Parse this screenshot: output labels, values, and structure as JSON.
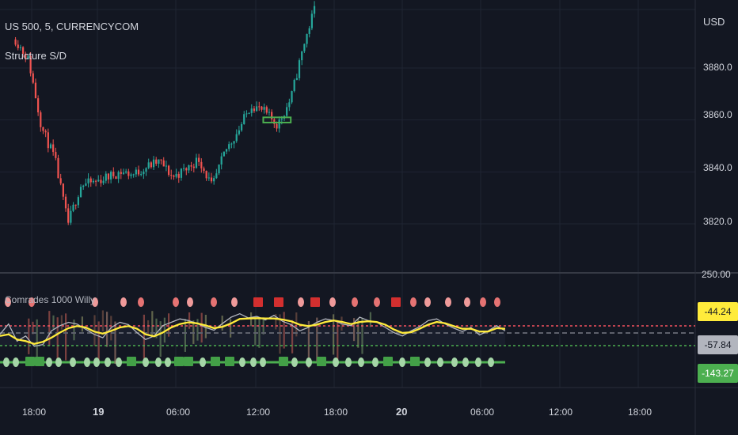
{
  "chart_header": {
    "symbol": "US 500, 5, CURRENCYCOM",
    "indicator": "Structure S/D"
  },
  "price_axis": {
    "currency": "USD",
    "ticks": [
      "3880.0",
      "3860.0",
      "3840.0",
      "3820.0"
    ]
  },
  "oscillator": {
    "title": "Comrades 1000 Willy",
    "top_tick": "250.00",
    "values": {
      "upper": "-44.24",
      "middle": "-57.84",
      "lower": "-143.27"
    }
  },
  "time_axis": {
    "labels": [
      "18:00",
      "19",
      "06:00",
      "12:00",
      "18:00",
      "20",
      "06:00",
      "12:00",
      "18:00"
    ]
  },
  "colors": {
    "background": "#131722",
    "grid": "#1f2433",
    "candle_up": "#26a69a",
    "candle_down": "#ef5350",
    "willy_fast": "#b2b5be",
    "willy_slow": "#ffeb3b",
    "upper_level": "#f7525f",
    "lower_level": "#4caf50",
    "demand_zone": "#4caf50"
  },
  "chart_data": {
    "type": "line",
    "title": "US 500, 5, CURRENCYCOM",
    "ylabel": "USD",
    "ylim": [
      3812,
      3905
    ],
    "x": [
      "18 17:00",
      "18 18:00",
      "18 19:00",
      "18 20:00",
      "18 21:00",
      "18 22:00",
      "18 23:00",
      "19 00:00",
      "19 01:00",
      "19 02:00",
      "19 03:00",
      "19 04:00",
      "19 05:00",
      "19 06:00",
      "19 07:00",
      "19 08:00",
      "19 09:00",
      "19 10:00",
      "19 11:00",
      "19 12:00",
      "19 13:00",
      "19 14:00",
      "19 15:00",
      "19 16:00"
    ],
    "series": [
      {
        "name": "US 500",
        "values": [
          3891,
          3883,
          3857,
          3845,
          3820,
          3835,
          3836,
          3838,
          3840,
          3839,
          3842,
          3844,
          3838,
          3841,
          3845,
          3834,
          3848,
          3856,
          3866,
          3863,
          3858,
          3868,
          3889,
          3906
        ]
      }
    ],
    "annotations": [
      {
        "type": "demand-zone",
        "from": "19 12:00",
        "to": "19 14:30",
        "low": 3859,
        "high": 3861
      }
    ],
    "oscillator_series": [
      {
        "name": "fast",
        "ylim": [
          -160,
          20
        ],
        "values": [
          -90,
          -60,
          -110,
          -95,
          -125,
          -120,
          -80,
          -65,
          -55,
          -60,
          -75,
          -90,
          -100,
          -70,
          -55,
          -62,
          -85,
          -105,
          -95,
          -65,
          -55,
          -45,
          -50,
          -58,
          -70,
          -78,
          -58,
          -40,
          -30,
          -42,
          -38,
          -48,
          -35,
          -52,
          -62,
          -80,
          -70,
          -55,
          -45,
          -50,
          -60,
          -65,
          -40,
          -50,
          -55,
          -70,
          -85,
          -95,
          -80,
          -68,
          -50,
          -45,
          -60,
          -72,
          -82,
          -70,
          -92,
          -80,
          -65,
          -80
        ]
      },
      {
        "name": "slow",
        "ylim": [
          -160,
          20
        ],
        "values": [
          -95,
          -90,
          -105,
          -110,
          -118,
          -112,
          -100,
          -85,
          -72,
          -66,
          -70,
          -82,
          -88,
          -80,
          -70,
          -66,
          -74,
          -90,
          -96,
          -85,
          -70,
          -60,
          -55,
          -58,
          -64,
          -72,
          -68,
          -58,
          -45,
          -44,
          -43,
          -44,
          -44,
          -47,
          -52,
          -62,
          -66,
          -62,
          -54,
          -50,
          -54,
          -60,
          -54,
          -52,
          -54,
          -62,
          -76,
          -86,
          -84,
          -74,
          -62,
          -54,
          -58,
          -66,
          -74,
          -74,
          -82,
          -82,
          -72,
          -74
        ]
      }
    ],
    "oscillator_levels": [
      -44.24,
      -57.84,
      -143.27
    ]
  }
}
